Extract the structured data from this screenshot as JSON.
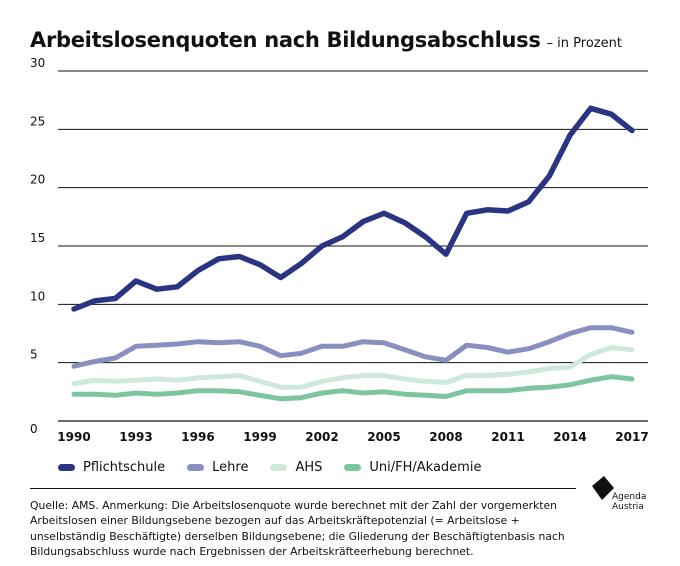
{
  "header": {
    "title": "Arbeitslosenquoten nach Bildungsabschluss",
    "subtitle": "– in Prozent"
  },
  "chart_data": {
    "type": "line",
    "title": "Arbeitslosenquoten nach Bildungsabschluss",
    "subtitle": "– in Prozent",
    "xlabel": "",
    "ylabel": "",
    "ylim": [
      0,
      30
    ],
    "y_ticks": [
      0,
      5,
      10,
      15,
      20,
      25,
      30
    ],
    "y_tick_labels": [
      "0",
      "5",
      "10",
      "15",
      "20",
      "25",
      "30"
    ],
    "x_tick_labels": [
      "1990",
      "1993",
      "1996",
      "1999",
      "2002",
      "2005",
      "2008",
      "2011",
      "2014",
      "2017"
    ],
    "x": [
      1990,
      1991,
      1992,
      1993,
      1994,
      1995,
      1996,
      1997,
      1998,
      1999,
      2000,
      2001,
      2002,
      2003,
      2004,
      2005,
      2006,
      2007,
      2008,
      2009,
      2010,
      2011,
      2012,
      2013,
      2014,
      2015,
      2016,
      2017
    ],
    "grid": "horizontal",
    "legend_position": "bottom-left",
    "series": [
      {
        "name": "Pflichtschule",
        "color": "#2a3482",
        "values": [
          9.6,
          10.3,
          10.5,
          12.0,
          11.3,
          11.5,
          12.9,
          13.9,
          14.1,
          13.4,
          12.3,
          13.5,
          15.0,
          15.8,
          17.1,
          17.8,
          17.0,
          15.8,
          14.3,
          17.8,
          18.1,
          18.0,
          18.8,
          21.0,
          24.5,
          26.8,
          26.3,
          24.9
        ]
      },
      {
        "name": "Lehre",
        "color": "#8b8ec0",
        "values": [
          4.7,
          5.1,
          5.4,
          6.4,
          6.5,
          6.6,
          6.8,
          6.7,
          6.8,
          6.4,
          5.6,
          5.8,
          6.4,
          6.4,
          6.8,
          6.7,
          6.1,
          5.5,
          5.2,
          6.5,
          6.3,
          5.9,
          6.2,
          6.8,
          7.5,
          8.0,
          8.0,
          7.6
        ]
      },
      {
        "name": "AHS",
        "color": "#cfe8dc",
        "values": [
          3.2,
          3.5,
          3.4,
          3.5,
          3.6,
          3.5,
          3.7,
          3.8,
          3.9,
          3.4,
          2.9,
          2.9,
          3.4,
          3.7,
          3.9,
          3.9,
          3.6,
          3.4,
          3.3,
          3.9,
          3.9,
          4.0,
          4.2,
          4.5,
          4.6,
          5.7,
          6.3,
          6.1
        ]
      },
      {
        "name": "Uni/FH/Akademie",
        "color": "#7dc4a0",
        "values": [
          2.3,
          2.3,
          2.2,
          2.4,
          2.3,
          2.4,
          2.6,
          2.6,
          2.5,
          2.2,
          1.9,
          2.0,
          2.4,
          2.6,
          2.4,
          2.5,
          2.3,
          2.2,
          2.1,
          2.6,
          2.6,
          2.6,
          2.8,
          2.9,
          3.1,
          3.5,
          3.8,
          3.6
        ]
      }
    ]
  },
  "legend": {
    "items": [
      {
        "label": "Pflichtschule",
        "color": "#2a3482"
      },
      {
        "label": "Lehre",
        "color": "#8b8ec0"
      },
      {
        "label": "AHS",
        "color": "#cfe8dc"
      },
      {
        "label": "Uni/FH/Akademie",
        "color": "#7dc4a0"
      }
    ]
  },
  "footer": {
    "source": "Quelle: AMS. Anmerkung: Die Arbeitslosenquote wurde berechnet mit der Zahl der vorgemerkten Arbeitslosen einer Bildungsebene bezogen auf das Arbeitskräftepotenzial (= Arbeitslose + unselbständig Beschäftigte) derselben Bildungsebene; die Gliederung der Beschäftigtenbasis nach Bildungsabschluss wurde nach Ergebnissen der Arbeitskräfteerhebung berechnet.",
    "logo_text_line1": "Agenda",
    "logo_text_line2": "Austria",
    "logo_icon": "agenda-austria-logo-icon"
  }
}
